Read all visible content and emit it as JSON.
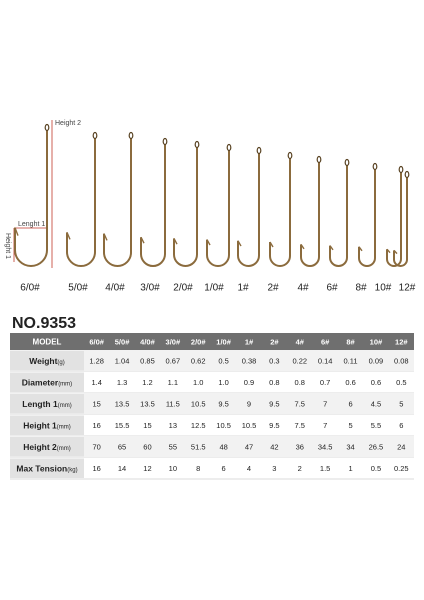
{
  "hooks": {
    "sizes": [
      "6/0#",
      "5/0#",
      "4/0#",
      "3/0#",
      "2/0#",
      "1/0#",
      "1#",
      "2#",
      "4#",
      "6#",
      "8#",
      "10#",
      "12#"
    ],
    "annotations": {
      "height2": "Height 2",
      "length1": "Lenght 1",
      "height1": "Height 1"
    }
  },
  "table": {
    "title": "NO.9353",
    "header": "MODEL",
    "columns": [
      "6/0#",
      "5/0#",
      "4/0#",
      "3/0#",
      "2/0#",
      "1/0#",
      "1#",
      "2#",
      "4#",
      "6#",
      "8#",
      "10#",
      "12#"
    ],
    "rows": [
      {
        "name": "Weight",
        "unit": "(g)",
        "values": [
          "1.28",
          "1.04",
          "0.85",
          "0.67",
          "0.62",
          "0.5",
          "0.38",
          "0.3",
          "0.22",
          "0.14",
          "0.11",
          "0.09",
          "0.08"
        ]
      },
      {
        "name": "Diameter",
        "unit": "(mm)",
        "values": [
          "1.4",
          "1.3",
          "1.2",
          "1.1",
          "1.0",
          "1.0",
          "0.9",
          "0.8",
          "0.8",
          "0.7",
          "0.6",
          "0.6",
          "0.5"
        ]
      },
      {
        "name": "Length 1",
        "unit": "(mm)",
        "values": [
          "15",
          "13.5",
          "13.5",
          "11.5",
          "10.5",
          "9.5",
          "9",
          "9.5",
          "7.5",
          "7",
          "6",
          "4.5",
          "5"
        ]
      },
      {
        "name": "Height 1",
        "unit": "(mm)",
        "values": [
          "16",
          "15.5",
          "15",
          "13",
          "12.5",
          "10.5",
          "10.5",
          "9.5",
          "7.5",
          "7",
          "5",
          "5.5",
          "6"
        ]
      },
      {
        "name": "Height 2",
        "unit": "(mm)",
        "values": [
          "70",
          "65",
          "60",
          "55",
          "51.5",
          "48",
          "47",
          "42",
          "36",
          "34.5",
          "34",
          "26.5",
          "24"
        ]
      },
      {
        "name": "Max Tension",
        "unit": "(kg)",
        "values": [
          "16",
          "14",
          "12",
          "10",
          "8",
          "6",
          "4",
          "3",
          "2",
          "1.5",
          "1",
          "0.5",
          "0.25"
        ]
      }
    ]
  }
}
